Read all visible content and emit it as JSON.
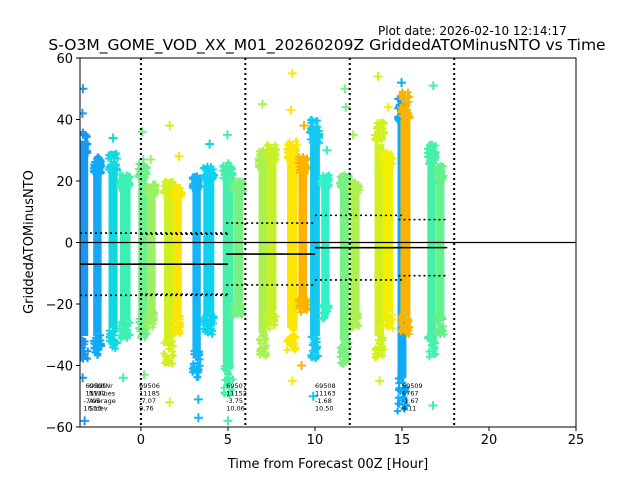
{
  "chart_data": {
    "type": "scatter",
    "title": "S-O3M_GOME_VOD_XX_M01_20260209Z GriddedATOMinusNTO vs Time",
    "subtitle": "Plot date: 2026-02-10 12:14:17",
    "xlabel": "Time from Forecast 00Z [Hour]",
    "ylabel": "GriddedATOMinusNTO",
    "xlim": [
      -3.5,
      25
    ],
    "ylim": [
      -60,
      60
    ],
    "xticks": [
      0,
      5,
      10,
      15,
      20,
      25
    ],
    "yticks": [
      -60,
      -40,
      -20,
      0,
      20,
      40,
      60
    ],
    "grid": false,
    "forecast_boundaries": [
      0,
      6,
      12,
      18
    ],
    "zero_line": 0,
    "stats_row_labels": [
      "OrbitNr",
      "NValues",
      "Average",
      "Stdev"
    ],
    "orbits": [
      {
        "orbit": "69505",
        "nvalues": "11172",
        "average": -7.05,
        "stdev": 10.13,
        "x_start": -3.5,
        "x_end": 5.0,
        "label_x": -3.3
      },
      {
        "orbit": "69506",
        "nvalues": "11185",
        "average": -7.07,
        "stdev": 9.76,
        "x_start": 0.0,
        "x_end": 5.0,
        "label_x": -0.1
      },
      {
        "orbit": "69507",
        "nvalues": "11152",
        "average": -3.75,
        "stdev": 10.06,
        "x_start": 4.9,
        "x_end": 10.0,
        "label_x": 4.9
      },
      {
        "orbit": "69508",
        "nvalues": "11163",
        "average": -1.68,
        "stdev": 10.5,
        "x_start": 10.0,
        "x_end": 15.0,
        "label_x": 10.0
      },
      {
        "orbit": "69509",
        "nvalues": "6767",
        "average": -1.67,
        "stdev": 9.11,
        "x_start": 14.8,
        "x_end": 17.6,
        "label_x": 15.0
      }
    ],
    "bands": [
      {
        "x": -3.3,
        "color": "#1e96f0",
        "top": 36,
        "bottom": -38,
        "outliers_hi": [
          50,
          42
        ],
        "outliers_lo": [
          -44,
          -58
        ]
      },
      {
        "x": -2.5,
        "color": "#12a8f5",
        "top": 28,
        "bottom": -37,
        "outliers_hi": [],
        "outliers_lo": []
      },
      {
        "x": -1.6,
        "color": "#10d7e2",
        "top": 29,
        "bottom": -35,
        "outliers_hi": [
          34
        ],
        "outliers_lo": []
      },
      {
        "x": -0.9,
        "color": "#3cf0b4",
        "top": 22,
        "bottom": -32,
        "outliers_hi": [],
        "outliers_lo": [
          -44
        ]
      },
      {
        "x": 0.1,
        "color": "#6ef08c",
        "top": 26,
        "bottom": -31,
        "outliers_hi": [
          36,
          27
        ],
        "outliers_lo": [
          -43
        ]
      },
      {
        "x": 0.6,
        "color": "#9cf064",
        "top": 19,
        "bottom": -28,
        "outliers_hi": [
          27
        ],
        "outliers_lo": []
      },
      {
        "x": 1.6,
        "color": "#d2f020",
        "top": 20,
        "bottom": -40,
        "outliers_hi": [
          38
        ],
        "outliers_lo": [
          -52
        ]
      },
      {
        "x": 2.1,
        "color": "#fae600",
        "top": 18,
        "bottom": -30,
        "outliers_hi": [
          28
        ],
        "outliers_lo": []
      },
      {
        "x": 3.2,
        "color": "#14b4f5",
        "top": 22,
        "bottom": -44,
        "outliers_hi": [],
        "outliers_lo": [
          -51,
          -57
        ]
      },
      {
        "x": 3.9,
        "color": "#0ad2f0",
        "top": 25,
        "bottom": -30,
        "outliers_hi": [
          32
        ],
        "outliers_lo": []
      },
      {
        "x": 5.0,
        "color": "#46f0aa",
        "top": 26,
        "bottom": -50,
        "outliers_hi": [
          35
        ],
        "outliers_lo": [
          -58
        ]
      },
      {
        "x": 5.6,
        "color": "#78f082",
        "top": 20,
        "bottom": -24,
        "outliers_hi": [],
        "outliers_lo": []
      },
      {
        "x": 7.0,
        "color": "#aaf050",
        "top": 30,
        "bottom": -37,
        "outliers_hi": [
          45
        ],
        "outliers_lo": []
      },
      {
        "x": 7.5,
        "color": "#c8f02a",
        "top": 32,
        "bottom": -28,
        "outliers_hi": [],
        "outliers_lo": []
      },
      {
        "x": 8.7,
        "color": "#fae600",
        "top": 33,
        "bottom": -35,
        "outliers_hi": [
          55,
          43
        ],
        "outliers_lo": [
          -45
        ]
      },
      {
        "x": 9.3,
        "color": "#fab400",
        "top": 28,
        "bottom": -23,
        "outliers_hi": [
          38
        ],
        "outliers_lo": [
          -40
        ]
      },
      {
        "x": 10.0,
        "color": "#14c8f0",
        "top": 40,
        "bottom": -38,
        "outliers_hi": [],
        "outliers_lo": [
          -50
        ]
      },
      {
        "x": 10.6,
        "color": "#32f0c8",
        "top": 22,
        "bottom": -25,
        "outliers_hi": [
          30
        ],
        "outliers_lo": []
      },
      {
        "x": 11.7,
        "color": "#78f082",
        "top": 22,
        "bottom": -40,
        "outliers_hi": [
          50,
          44
        ],
        "outliers_lo": []
      },
      {
        "x": 12.3,
        "color": "#aaf050",
        "top": 20,
        "bottom": -28,
        "outliers_hi": [
          35
        ],
        "outliers_lo": []
      },
      {
        "x": 13.7,
        "color": "#d2f020",
        "top": 40,
        "bottom": -38,
        "outliers_hi": [
          54
        ],
        "outliers_lo": [
          -45
        ]
      },
      {
        "x": 14.2,
        "color": "#f0f000",
        "top": 30,
        "bottom": -28,
        "outliers_hi": [
          44
        ],
        "outliers_lo": []
      },
      {
        "x": 15.0,
        "color": "#0aaaf5",
        "top": 49,
        "bottom": -55,
        "outliers_hi": [
          52
        ],
        "outliers_lo": []
      },
      {
        "x": 15.2,
        "color": "#fab400",
        "top": 50,
        "bottom": -30,
        "outliers_hi": [],
        "outliers_lo": []
      },
      {
        "x": 16.7,
        "color": "#46f0aa",
        "top": 32,
        "bottom": -38,
        "outliers_hi": [
          51
        ],
        "outliers_lo": [
          -53
        ]
      },
      {
        "x": 17.2,
        "color": "#64f08c",
        "top": 25,
        "bottom": -30,
        "outliers_hi": [],
        "outliers_lo": []
      }
    ]
  }
}
